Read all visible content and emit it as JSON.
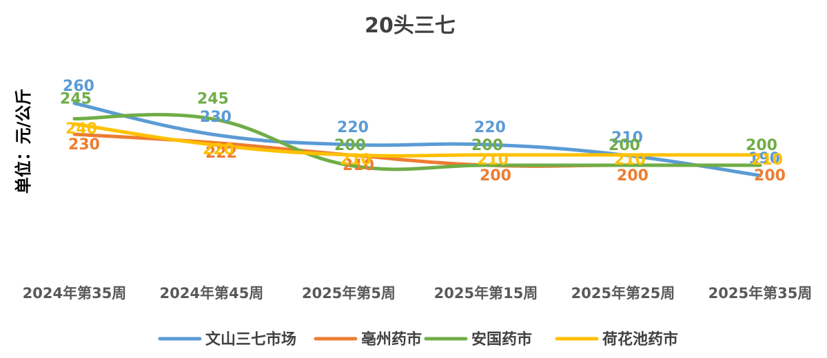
{
  "chart_data": {
    "type": "line",
    "title": "20头三七",
    "ylabel": "单位：元/公斤",
    "xlabel": "",
    "ylim": [
      100,
      300
    ],
    "grid": false,
    "legend_position": "bottom",
    "categories": [
      "2024年第35周",
      "2024年第45周",
      "2025年第5周",
      "2025年第15周",
      "2025年第25周",
      "2025年第35周"
    ],
    "series": [
      {
        "name": "文山三七市场",
        "color": "#5B9BD5",
        "values": [
          260,
          230,
          220,
          220,
          210,
          190
        ]
      },
      {
        "name": "亳州药市",
        "color": "#ED7D31",
        "values": [
          230,
          222,
          210,
          200,
          200,
          200
        ]
      },
      {
        "name": "安国药市",
        "color": "#70AD47",
        "values": [
          245,
          245,
          200,
          200,
          200,
          200
        ]
      },
      {
        "name": "荷花池药市",
        "color": "#FFC000",
        "values": [
          240,
          220,
          210,
          210,
          210,
          210
        ]
      }
    ],
    "data_labels": [
      [
        "260",
        "230",
        "220",
        "220",
        "210",
        "190"
      ],
      [
        "230",
        "222",
        "210",
        "200",
        "200",
        "200"
      ],
      [
        "245",
        "245",
        "200",
        "200",
        "200",
        "200"
      ],
      [
        "240",
        "220",
        "210",
        "210",
        "210",
        "210"
      ]
    ]
  }
}
